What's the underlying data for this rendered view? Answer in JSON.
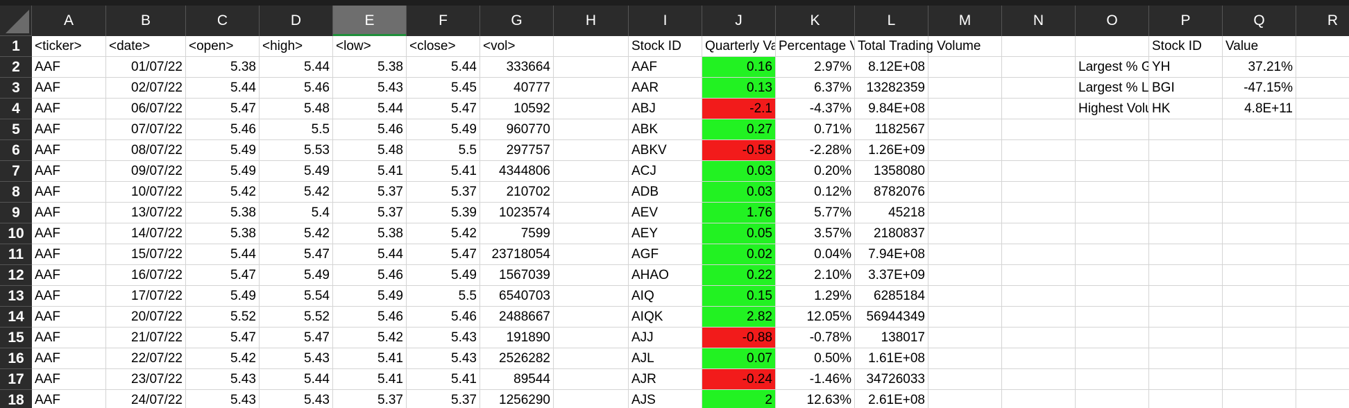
{
  "columns": [
    "A",
    "B",
    "C",
    "D",
    "E",
    "F",
    "G",
    "H",
    "I",
    "J",
    "K",
    "L",
    "M",
    "N",
    "O",
    "P",
    "Q",
    "R"
  ],
  "selected_column": "E",
  "rows": [
    "1",
    "2",
    "3",
    "4",
    "5",
    "6",
    "7",
    "8",
    "9",
    "10",
    "11",
    "12",
    "13",
    "14",
    "15",
    "16",
    "17",
    "18"
  ],
  "colors": {
    "positive": "#22f222",
    "negative": "#f21b1b",
    "header_bg": "#2b2b2b",
    "selected_header": "#6e6e6e"
  },
  "raw_headers": [
    "<ticker>",
    "<date>",
    "<open>",
    "<high>",
    "<low>",
    "<close>",
    "<vol>"
  ],
  "raw_data": [
    [
      "AAF",
      "01/07/22",
      "5.38",
      "5.44",
      "5.38",
      "5.44",
      "333664"
    ],
    [
      "AAF",
      "02/07/22",
      "5.44",
      "5.46",
      "5.43",
      "5.45",
      "40777"
    ],
    [
      "AAF",
      "06/07/22",
      "5.47",
      "5.48",
      "5.44",
      "5.47",
      "10592"
    ],
    [
      "AAF",
      "07/07/22",
      "5.46",
      "5.5",
      "5.46",
      "5.49",
      "960770"
    ],
    [
      "AAF",
      "08/07/22",
      "5.49",
      "5.53",
      "5.48",
      "5.5",
      "297757"
    ],
    [
      "AAF",
      "09/07/22",
      "5.49",
      "5.49",
      "5.41",
      "5.41",
      "4344806"
    ],
    [
      "AAF",
      "10/07/22",
      "5.42",
      "5.42",
      "5.37",
      "5.37",
      "210702"
    ],
    [
      "AAF",
      "13/07/22",
      "5.38",
      "5.4",
      "5.37",
      "5.39",
      "1023574"
    ],
    [
      "AAF",
      "14/07/22",
      "5.38",
      "5.42",
      "5.38",
      "5.42",
      "7599"
    ],
    [
      "AAF",
      "15/07/22",
      "5.44",
      "5.47",
      "5.44",
      "5.47",
      "23718054"
    ],
    [
      "AAF",
      "16/07/22",
      "5.47",
      "5.49",
      "5.46",
      "5.49",
      "1567039"
    ],
    [
      "AAF",
      "17/07/22",
      "5.49",
      "5.54",
      "5.49",
      "5.5",
      "6540703"
    ],
    [
      "AAF",
      "20/07/22",
      "5.52",
      "5.52",
      "5.46",
      "5.46",
      "2488667"
    ],
    [
      "AAF",
      "21/07/22",
      "5.47",
      "5.47",
      "5.42",
      "5.43",
      "191890"
    ],
    [
      "AAF",
      "22/07/22",
      "5.42",
      "5.43",
      "5.41",
      "5.43",
      "2526282"
    ],
    [
      "AAF",
      "23/07/22",
      "5.43",
      "5.44",
      "5.41",
      "5.41",
      "89544"
    ],
    [
      "AAF",
      "24/07/22",
      "5.43",
      "5.43",
      "5.37",
      "5.37",
      "1256290"
    ]
  ],
  "summary_headers": [
    "Stock ID",
    "Quarterly Variance",
    "Percentage Variance",
    "Total Trading Volume"
  ],
  "summary_data": [
    [
      "AAF",
      "0.16",
      "2.97%",
      "8.12E+08"
    ],
    [
      "AAR",
      "0.13",
      "6.37%",
      "13282359"
    ],
    [
      "ABJ",
      "-2.1",
      "-4.37%",
      "9.84E+08"
    ],
    [
      "ABK",
      "0.27",
      "0.71%",
      "1182567"
    ],
    [
      "ABKV",
      "-0.58",
      "-2.28%",
      "1.26E+09"
    ],
    [
      "ACJ",
      "0.03",
      "0.20%",
      "1358080"
    ],
    [
      "ADB",
      "0.03",
      "0.12%",
      "8782076"
    ],
    [
      "AEV",
      "1.76",
      "5.77%",
      "45218"
    ],
    [
      "AEY",
      "0.05",
      "3.57%",
      "2180837"
    ],
    [
      "AGF",
      "0.02",
      "0.04%",
      "7.94E+08"
    ],
    [
      "AHAO",
      "0.22",
      "2.10%",
      "3.37E+09"
    ],
    [
      "AIQ",
      "0.15",
      "1.29%",
      "6285184"
    ],
    [
      "AIQK",
      "2.82",
      "12.05%",
      "56944349"
    ],
    [
      "AJJ",
      "-0.88",
      "-0.78%",
      "138017"
    ],
    [
      "AJL",
      "0.07",
      "0.50%",
      "1.61E+08"
    ],
    [
      "AJR",
      "-0.24",
      "-1.46%",
      "34726033"
    ],
    [
      "AJS",
      "2",
      "12.63%",
      "2.61E+08"
    ]
  ],
  "extremes_headers": [
    "Stock ID",
    "Value"
  ],
  "extremes_data": [
    [
      "Largest % Gain",
      "YH",
      "37.21%"
    ],
    [
      "Largest % Loss",
      "BGI",
      "-47.15%"
    ],
    [
      "Highest Volume",
      "HK",
      "4.8E+11"
    ]
  ]
}
